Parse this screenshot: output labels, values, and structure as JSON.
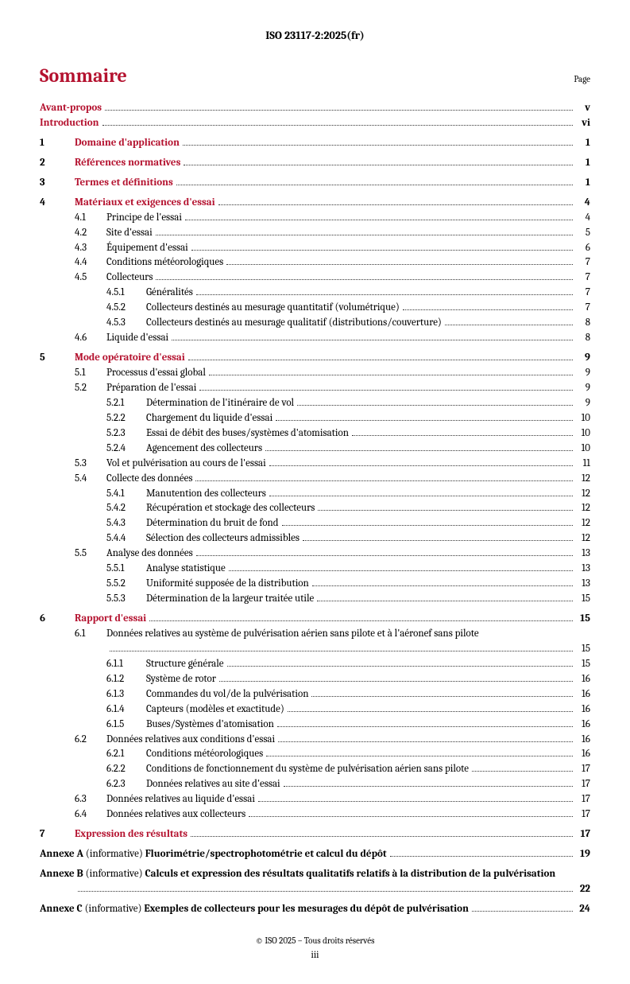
{
  "doc_header": "ISO 23117-2:2025(fr)",
  "title": "Sommaire",
  "page_label": "Page",
  "footer_copyright": "© ISO 2025 – Tous droits réservés",
  "footer_page": "iii",
  "front": [
    {
      "label": "Avant-propos",
      "page": "v"
    },
    {
      "label": "Introduction",
      "page": "vi"
    }
  ],
  "sections": [
    {
      "num": "1",
      "label": "Domaine d'application",
      "page": "1"
    },
    {
      "num": "2",
      "label": "Références normatives",
      "page": "1"
    },
    {
      "num": "3",
      "label": "Termes et définitions",
      "page": "1"
    },
    {
      "num": "4",
      "label": "Matériaux et exigences d'essai",
      "page": "4",
      "subs": [
        {
          "num": "4.1",
          "label": "Principe de l'essai",
          "page": "4"
        },
        {
          "num": "4.2",
          "label": "Site d'essai",
          "page": "5"
        },
        {
          "num": "4.3",
          "label": "Équipement d'essai",
          "page": "6"
        },
        {
          "num": "4.4",
          "label": "Conditions météorologiques",
          "page": "7"
        },
        {
          "num": "4.5",
          "label": "Collecteurs",
          "page": "7",
          "subs": [
            {
              "num": "4.5.1",
              "label": "Généralités",
              "page": "7"
            },
            {
              "num": "4.5.2",
              "label": "Collecteurs destinés au mesurage quantitatif (volumétrique)",
              "page": "7"
            },
            {
              "num": "4.5.3",
              "label": "Collecteurs destinés au mesurage qualitatif (distributions/couverture)",
              "page": "8"
            }
          ]
        },
        {
          "num": "4.6",
          "label": "Liquide d'essai",
          "page": "8"
        }
      ]
    },
    {
      "num": "5",
      "label": "Mode opératoire d'essai",
      "page": "9",
      "subs": [
        {
          "num": "5.1",
          "label": "Processus d'essai global",
          "page": "9"
        },
        {
          "num": "5.2",
          "label": "Préparation de l'essai",
          "page": "9",
          "subs": [
            {
              "num": "5.2.1",
              "label": "Détermination de l'itinéraire de vol",
              "page": "9"
            },
            {
              "num": "5.2.2",
              "label": "Chargement du liquide d'essai",
              "page": "10"
            },
            {
              "num": "5.2.3",
              "label": "Essai de débit des buses/systèmes d'atomisation",
              "page": "10"
            },
            {
              "num": "5.2.4",
              "label": "Agencement des collecteurs",
              "page": "10"
            }
          ]
        },
        {
          "num": "5.3",
          "label": "Vol et pulvérisation au cours de l'essai",
          "page": "11"
        },
        {
          "num": "5.4",
          "label": "Collecte des données",
          "page": "12",
          "subs": [
            {
              "num": "5.4.1",
              "label": "Manutention des collecteurs",
              "page": "12"
            },
            {
              "num": "5.4.2",
              "label": "Récupération et stockage des collecteurs",
              "page": "12"
            },
            {
              "num": "5.4.3",
              "label": "Détermination du bruit de fond",
              "page": "12"
            },
            {
              "num": "5.4.4",
              "label": "Sélection des collecteurs admissibles",
              "page": "12"
            }
          ]
        },
        {
          "num": "5.5",
          "label": "Analyse des données",
          "page": "13",
          "subs": [
            {
              "num": "5.5.1",
              "label": "Analyse statistique",
              "page": "13"
            },
            {
              "num": "5.5.2",
              "label": "Uniformité supposée de la distribution",
              "page": "13"
            },
            {
              "num": "5.5.3",
              "label": "Détermination de la largeur traitée utile",
              "page": "15"
            }
          ]
        }
      ]
    },
    {
      "num": "6",
      "label": "Rapport d'essai",
      "page": "15",
      "subs": [
        {
          "num": "6.1",
          "label": "Données relatives au système de pulvérisation aérien sans pilote et à l'aéronef sans pilote",
          "page": "15",
          "wrap": true,
          "subs": [
            {
              "num": "6.1.1",
              "label": "Structure générale",
              "page": "15"
            },
            {
              "num": "6.1.2",
              "label": "Système de rotor",
              "page": "16"
            },
            {
              "num": "6.1.3",
              "label": "Commandes du vol/de la pulvérisation",
              "page": "16"
            },
            {
              "num": "6.1.4",
              "label": "Capteurs (modèles et exactitude)",
              "page": "16"
            },
            {
              "num": "6.1.5",
              "label": "Buses/Systèmes d'atomisation",
              "page": "16"
            }
          ]
        },
        {
          "num": "6.2",
          "label": "Données relatives aux conditions d'essai",
          "page": "16",
          "subs": [
            {
              "num": "6.2.1",
              "label": "Conditions météorologiques",
              "page": "16"
            },
            {
              "num": "6.2.2",
              "label": "Conditions de fonctionnement du système de pulvérisation aérien sans pilote",
              "page": "17"
            },
            {
              "num": "6.2.3",
              "label": "Données relatives au site d'essai",
              "page": "17"
            }
          ]
        },
        {
          "num": "6.3",
          "label": "Données relatives au liquide d'essai",
          "page": "17"
        },
        {
          "num": "6.4",
          "label": "Données relatives aux collecteurs",
          "page": "17"
        }
      ]
    },
    {
      "num": "7",
      "label": "Expression des résultats",
      "page": "17"
    }
  ],
  "annexes": [
    {
      "prefix": "Annexe A",
      "nature": "(informative)",
      "label": "Fluorimétrie/spectrophotométrie et calcul du dépôt",
      "page": "19"
    },
    {
      "prefix": "Annexe B",
      "nature": "(informative)",
      "label": "Calculs et expression des résultats qualitatifs relatifs à la distribution de la pulvérisation",
      "page": "22",
      "wrap": true
    },
    {
      "prefix": "Annexe C",
      "nature": "(informative)",
      "label": "Exemples de collecteurs pour les mesurages du dépôt de pulvérisation",
      "page": "24"
    }
  ]
}
